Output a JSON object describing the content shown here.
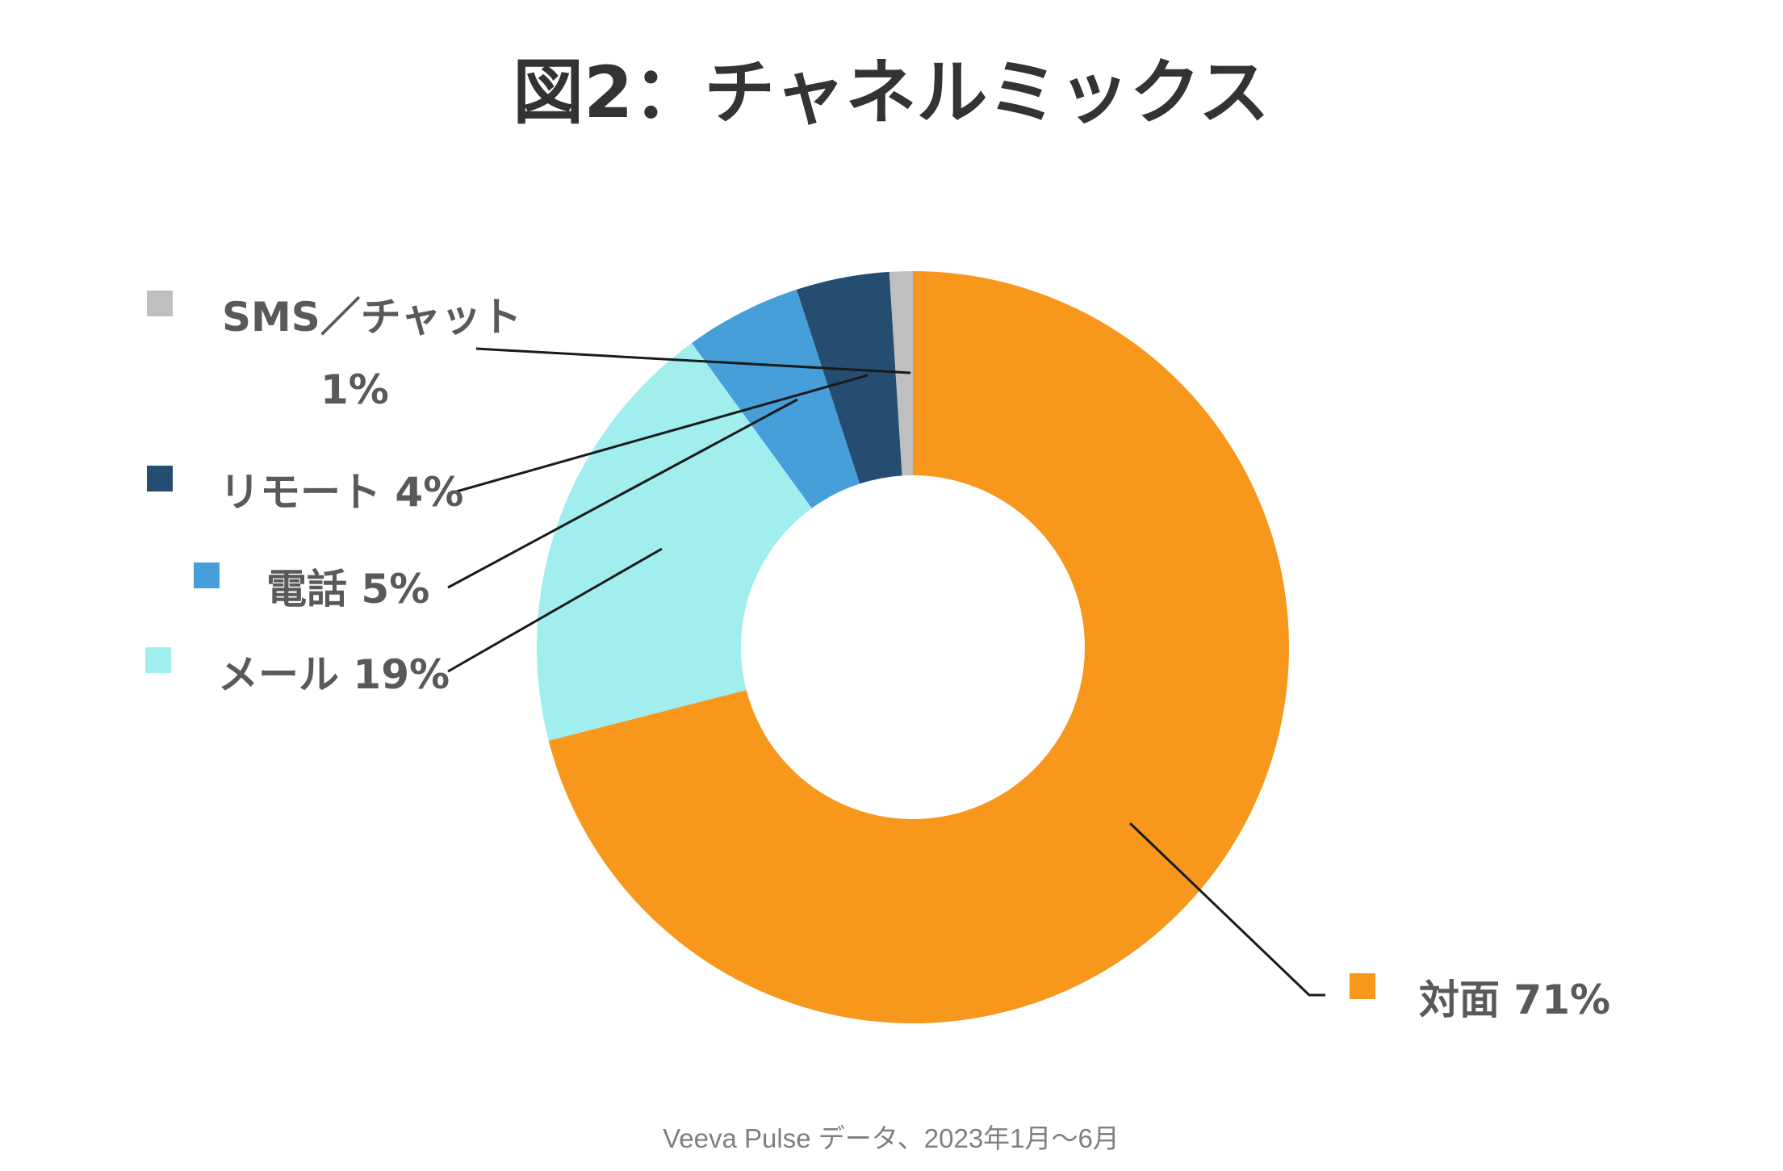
{
  "chart_data": {
    "type": "pie",
    "variant": "donut",
    "title": "図2：チャネルミックス",
    "source": "Veeva Pulse データ、2023年1月～6月",
    "legend_position": "left",
    "series": [
      {
        "name": "対面",
        "value": 71,
        "label": "対面 71%",
        "color": "#F7981D"
      },
      {
        "name": "メール",
        "value": 19,
        "label": "メール 19%",
        "color": "#A0EEEE"
      },
      {
        "name": "電話",
        "value": 5,
        "label": "電話 5%",
        "color": "#469FD9"
      },
      {
        "name": "リモート",
        "value": 4,
        "label": "リモート 4%",
        "color": "#254C71"
      },
      {
        "name": "SMS／チャット",
        "value": 1,
        "label_line1": "SMS／チャット",
        "label_line2": "1%",
        "color": "#BFBFBF"
      }
    ]
  }
}
